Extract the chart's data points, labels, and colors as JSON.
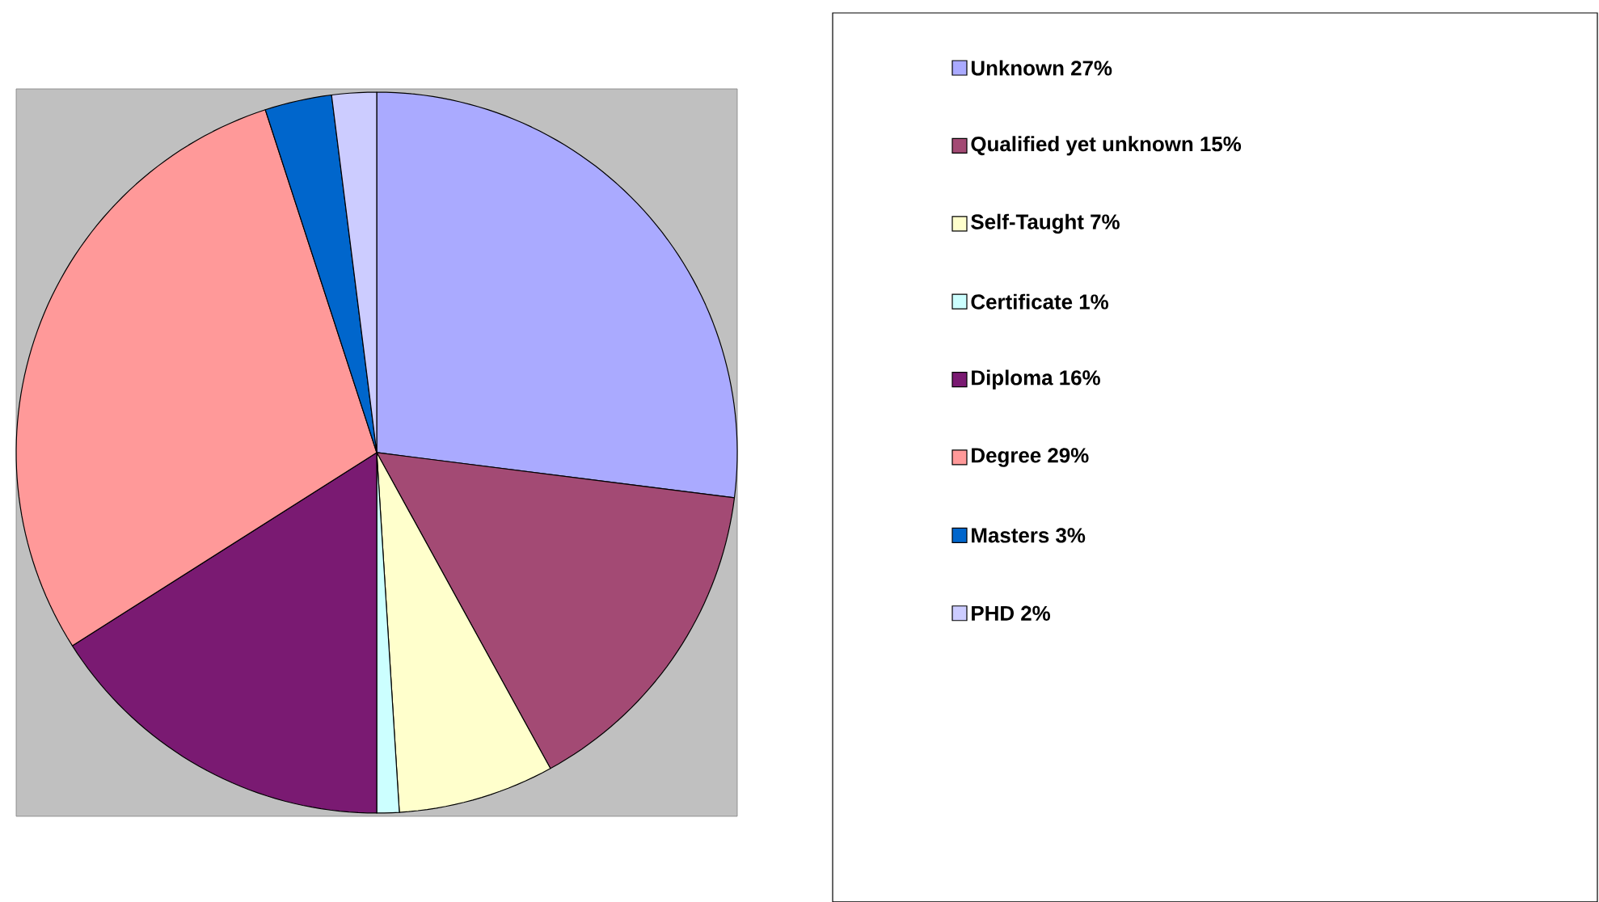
{
  "chart_data": {
    "type": "pie",
    "categories": [
      "Unknown 27%",
      "Qualified yet unknown 15%",
      "Self-Taught 7%",
      "Certificate 1%",
      "Diploma 16%",
      "Degree 29%",
      "Masters 3%",
      "PHD 2%"
    ],
    "values": [
      27,
      15,
      7,
      1,
      16,
      29,
      3,
      2
    ],
    "colors": [
      "#aaaaff",
      "#a34a74",
      "#ffffcc",
      "#ccffff",
      "#7a1a72",
      "#ff9999",
      "#0066cc",
      "#ccccff"
    ],
    "legend": "right"
  }
}
